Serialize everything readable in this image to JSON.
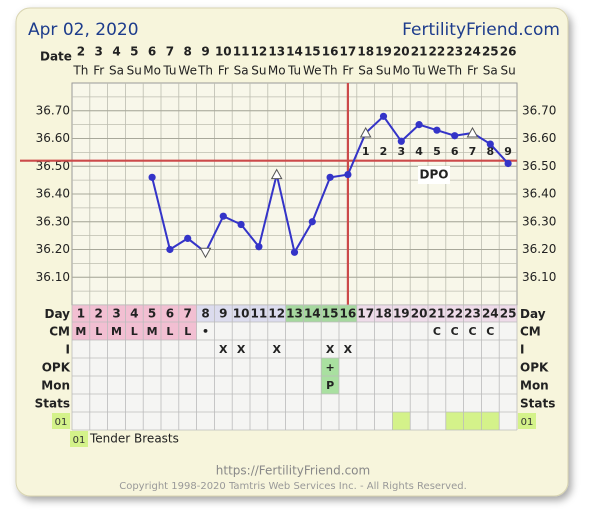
{
  "header": {
    "date": "Apr 02, 2020",
    "site": "FertilityFriend.com"
  },
  "chart_data": {
    "type": "line",
    "x_label": "Date",
    "categories": [
      "2",
      "3",
      "4",
      "5",
      "6",
      "7",
      "8",
      "9",
      "10",
      "11",
      "12",
      "13",
      "14",
      "15",
      "16",
      "17",
      "18",
      "19",
      "20",
      "21",
      "22",
      "23",
      "24",
      "25",
      "26"
    ],
    "weekdays": [
      "Th",
      "Fr",
      "Sa",
      "Su",
      "Mo",
      "Tu",
      "We",
      "Th",
      "Fr",
      "Sa",
      "Su",
      "Mo",
      "Tu",
      "We",
      "Th",
      "Fr",
      "Sa",
      "Su",
      "Mo",
      "Tu",
      "We",
      "Th",
      "Fr",
      "Sa",
      "Su"
    ],
    "ylim": [
      36.0,
      36.8
    ],
    "yticks": [
      {
        "value": 36.1,
        "label": "36.10"
      },
      {
        "value": 36.2,
        "label": "36.20"
      },
      {
        "value": 36.3,
        "label": "36.30"
      },
      {
        "value": 36.4,
        "label": "36.40"
      },
      {
        "value": 36.5,
        "label": "36.50"
      },
      {
        "value": 36.6,
        "label": "36.60"
      },
      {
        "value": 36.7,
        "label": "36.70"
      }
    ],
    "grid": true,
    "series": [
      {
        "color": "#3434c8",
        "values": [
          null,
          null,
          null,
          null,
          36.46,
          36.2,
          36.24,
          36.19,
          36.32,
          36.29,
          36.21,
          36.47,
          36.19,
          36.3,
          36.46,
          36.47,
          36.62,
          36.68,
          36.59,
          36.65,
          36.63,
          36.61,
          36.62,
          36.58,
          36.51
        ],
        "markers": [
          null,
          null,
          null,
          null,
          "dot",
          "dot",
          "dot",
          "triangle-down",
          "dot",
          "dot",
          "dot",
          "triangle-up",
          "dot",
          "dot",
          "dot",
          "dot",
          "triangle-up",
          "dot",
          "dot",
          "dot",
          "dot",
          "dot",
          "triangle-up",
          "dot",
          "dot"
        ]
      }
    ],
    "coverline": 36.52,
    "coverline_color": "#cc4a4a",
    "ovulation_day": 16,
    "dpo_label": "DPO",
    "dpo": [
      null,
      null,
      null,
      null,
      null,
      null,
      null,
      null,
      null,
      null,
      null,
      null,
      null,
      null,
      null,
      null,
      1,
      2,
      3,
      4,
      5,
      6,
      7,
      8,
      9
    ]
  },
  "table": {
    "row_labels": [
      "Day",
      "CM",
      "I",
      "OPK",
      "Mon",
      "Stats"
    ],
    "days": [
      1,
      2,
      3,
      4,
      5,
      6,
      7,
      8,
      9,
      10,
      11,
      12,
      13,
      14,
      15,
      16,
      17,
      18,
      19,
      20,
      21,
      22,
      23,
      24,
      25
    ],
    "day_phases": [
      {
        "from": 1,
        "to": 7,
        "color": "#f2bfd2"
      },
      {
        "from": 8,
        "to": 12,
        "color": "#dcdcee"
      },
      {
        "from": 13,
        "to": 16,
        "color": "#a6d89f"
      },
      {
        "from": 17,
        "to": 25,
        "color": "#eedbe9"
      }
    ],
    "cm": [
      "M",
      "L",
      "M",
      "L",
      "M",
      "L",
      "L",
      "•",
      null,
      null,
      null,
      null,
      null,
      null,
      null,
      null,
      null,
      null,
      null,
      null,
      "C",
      "C",
      "C",
      "C",
      null
    ],
    "i": [
      null,
      null,
      null,
      null,
      null,
      null,
      null,
      null,
      "X",
      "X",
      null,
      "X",
      null,
      null,
      "X",
      "X",
      null,
      null,
      null,
      null,
      null,
      null,
      null,
      null,
      null
    ],
    "opk": [
      null,
      null,
      null,
      null,
      null,
      null,
      null,
      null,
      null,
      null,
      null,
      null,
      null,
      null,
      "+",
      null,
      null,
      null,
      null,
      null,
      null,
      null,
      null,
      null,
      null
    ],
    "mon": [
      null,
      null,
      null,
      null,
      null,
      null,
      null,
      null,
      null,
      null,
      null,
      null,
      null,
      null,
      "P",
      null,
      null,
      null,
      null,
      null,
      null,
      null,
      null,
      null,
      null
    ],
    "symptoms": {
      "code": "01",
      "name": "Tender Breasts",
      "days": [
        19,
        22,
        23,
        24
      ],
      "color": "#d4f28a"
    }
  },
  "footer": {
    "url": "https://FertilityFriend.com",
    "copyright": "Copyright 1998-2020 Tamtris Web Services Inc. - All Rights Reserved."
  }
}
